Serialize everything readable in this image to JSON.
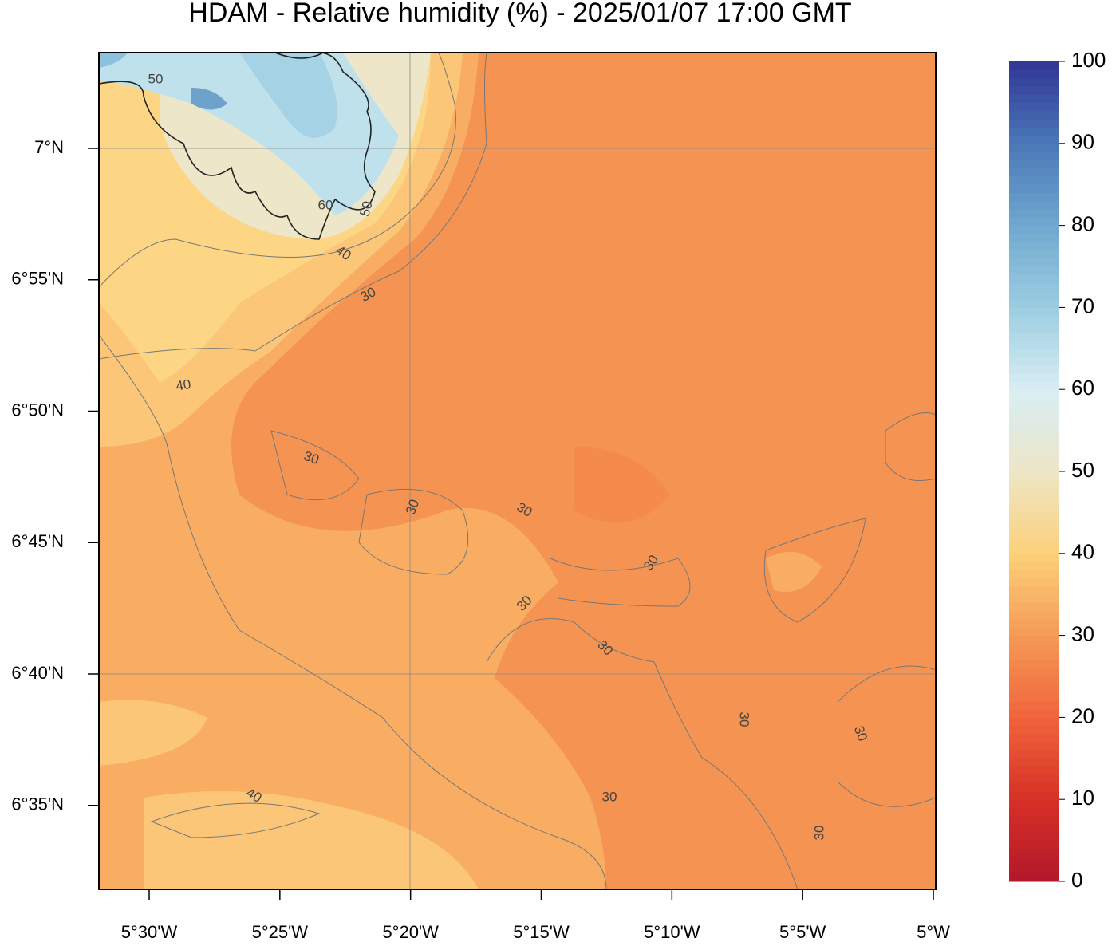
{
  "title": "HDAM - Relative humidity (%)  -  2025/01/07  17:00 GMT",
  "map": {
    "lon_ticks": [
      {
        "value": -5.5,
        "label": "5°30'W"
      },
      {
        "value": -5.416667,
        "label": "5°25'W"
      },
      {
        "value": -5.333333,
        "label": "5°20'W"
      },
      {
        "value": -5.25,
        "label": "5°15'W"
      },
      {
        "value": -5.166667,
        "label": "5°10'W"
      },
      {
        "value": -5.083333,
        "label": "5°5'W"
      },
      {
        "value": -5,
        "label": "5°W"
      }
    ],
    "lat_ticks": [
      {
        "value": 7,
        "label": "7°N"
      },
      {
        "value": 6.916667,
        "label": "6°55'N"
      },
      {
        "value": 6.833333,
        "label": "6°50'N"
      },
      {
        "value": 6.75,
        "label": "6°45'N"
      },
      {
        "value": 6.666667,
        "label": "6°40'N"
      },
      {
        "value": 6.583333,
        "label": "6°35'N"
      }
    ],
    "contour_labels": [
      "50",
      "60",
      "50",
      "40",
      "30",
      "40",
      "30",
      "30",
      "30",
      "30",
      "30",
      "30",
      "30",
      "30",
      "30",
      "40",
      "30"
    ]
  },
  "colorbar": {
    "ticks": [
      0,
      10,
      20,
      30,
      40,
      50,
      60,
      70,
      80,
      90,
      100
    ]
  }
}
